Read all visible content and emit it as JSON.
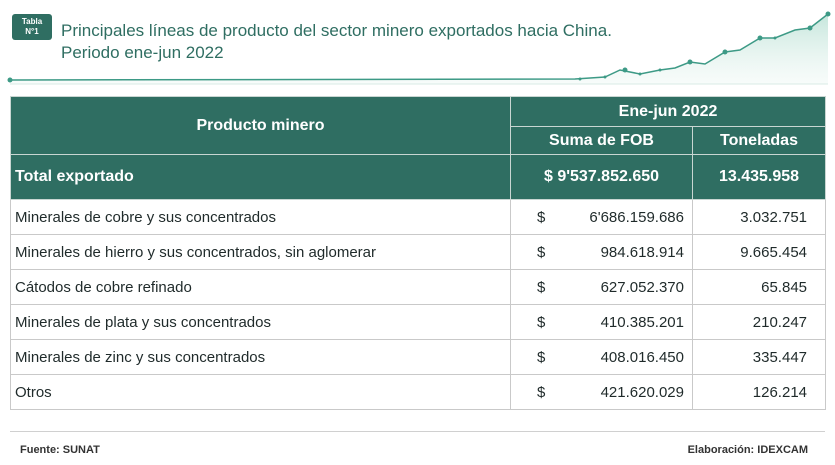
{
  "header": {
    "badge_line1": "Tabla",
    "badge_line2": "N°1",
    "title_line1": "Principales líneas de producto del sector minero exportados hacia China.",
    "title_line2": "Periodo ene-jun 2022"
  },
  "table": {
    "col_product": "Producto minero",
    "col_period": "Ene-jun 2022",
    "col_fob": "Suma de FOB",
    "col_tons": "Toneladas",
    "total": {
      "label": "Total exportado",
      "fob": "$ 9'537.852.650",
      "tons": "13.435.958"
    },
    "rows": [
      {
        "product": "Minerales de cobre y sus concentrados",
        "currency": "$",
        "fob": "6'686.159.686",
        "tons": "3.032.751"
      },
      {
        "product": "Minerales de hierro y sus concentrados,  sin aglomerar",
        "currency": "$",
        "fob": "984.618.914",
        "tons": "9.665.454"
      },
      {
        "product": "Cátodos de cobre refinado",
        "currency": "$",
        "fob": "627.052.370",
        "tons": "65.845"
      },
      {
        "product": "Minerales de plata y sus concentrados",
        "currency": "$",
        "fob": "410.385.201",
        "tons": "210.247"
      },
      {
        "product": "Minerales de zinc y sus concentrados",
        "currency": "$",
        "fob": "408.016.450",
        "tons": "335.447"
      },
      {
        "product": "Otros",
        "currency": "$",
        "fob": "421.620.029",
        "tons": "126.214"
      }
    ]
  },
  "footer": {
    "source": "Fuente: SUNAT",
    "credit": "Elaboración: IDEXCAM"
  },
  "colors": {
    "accent": "#2f6e62",
    "decor_line": "#3d9a86",
    "decor_fill": "#bfe3d8"
  }
}
